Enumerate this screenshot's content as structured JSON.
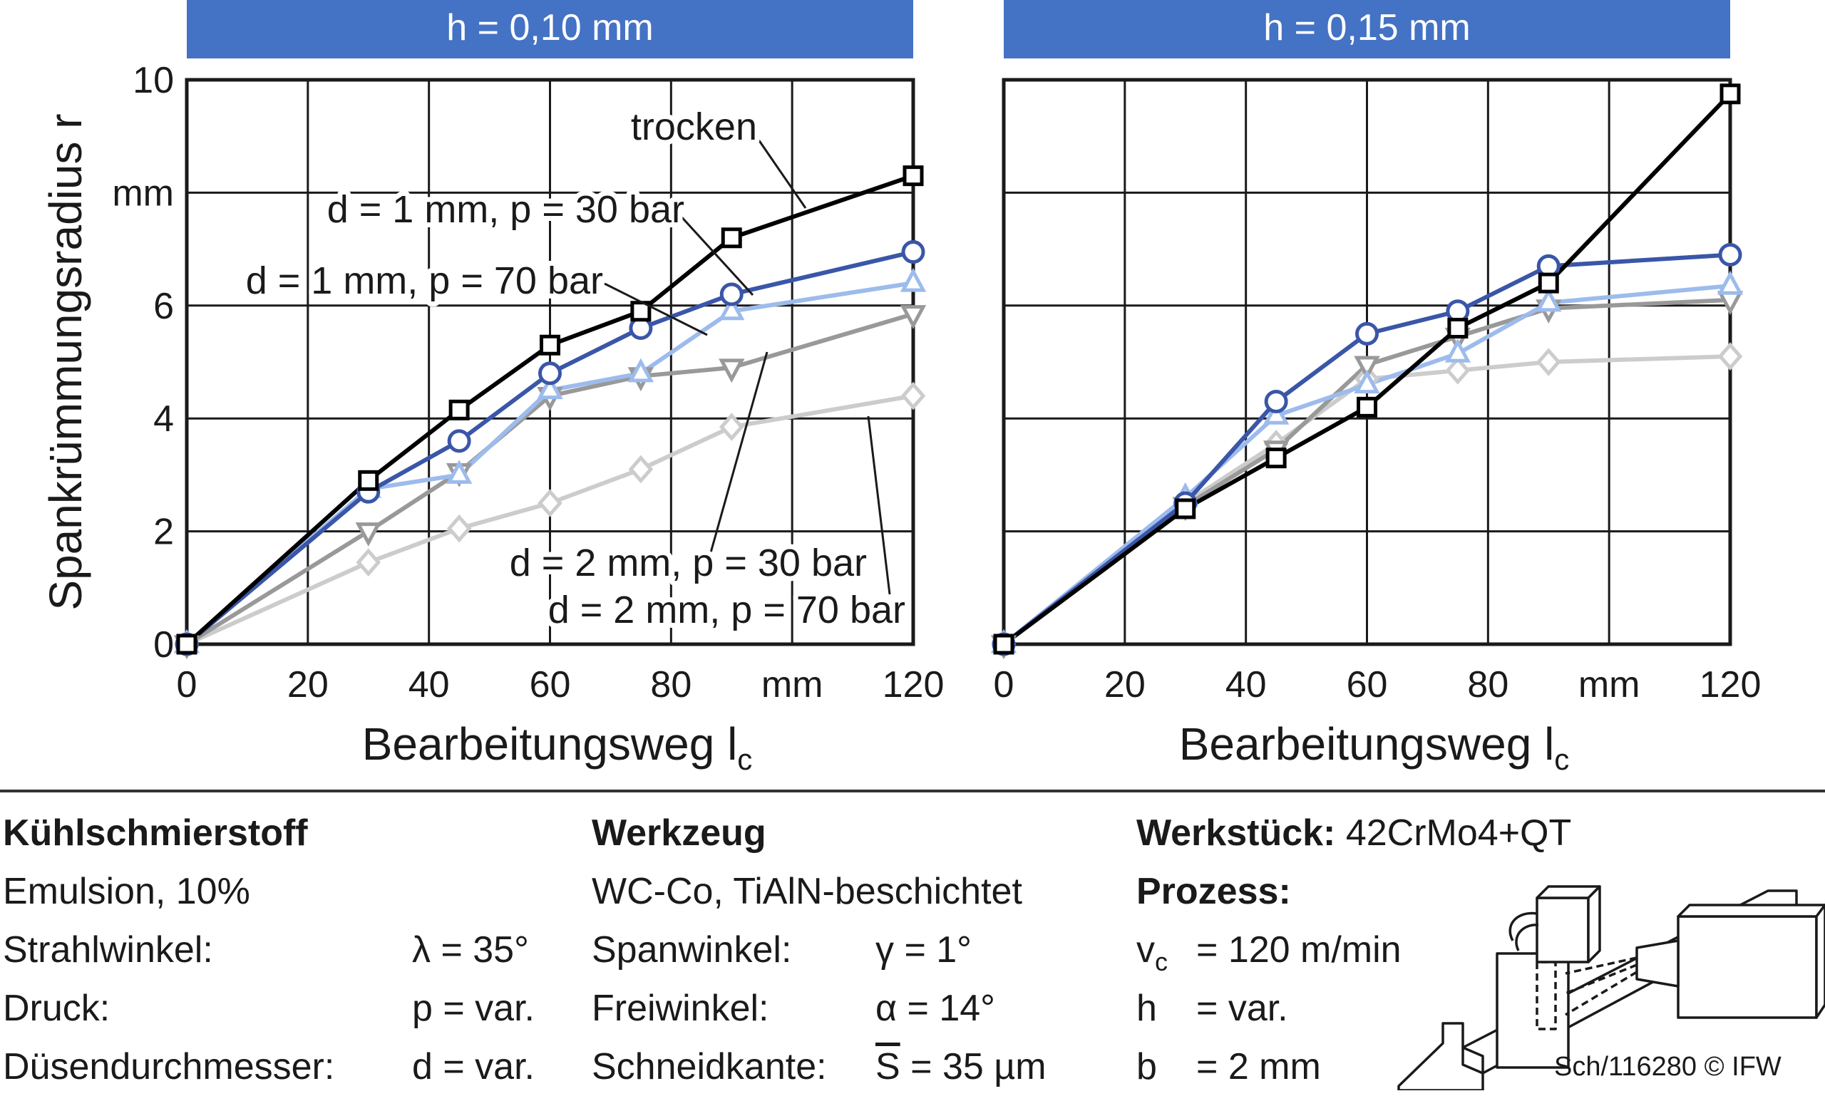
{
  "chart_data": [
    {
      "type": "line",
      "title": "h = 0,10 mm",
      "xlabel": "Bearbeitungsweg l",
      "xlabel_sub": "c",
      "ylabel": "Spankrümmungsradius r",
      "xlim": [
        0,
        120
      ],
      "ylim": [
        0,
        10
      ],
      "x_ticks": [
        "0",
        "20",
        "40",
        "60",
        "80",
        "mm",
        "120"
      ],
      "y_ticks": [
        "0",
        "2",
        "4",
        "6",
        "mm",
        "10"
      ],
      "grid": true,
      "x": [
        0,
        30,
        45,
        60,
        75,
        90,
        120
      ],
      "series": [
        {
          "name": "trocken",
          "values": [
            0,
            2.9,
            4.15,
            5.3,
            5.9,
            7.2,
            8.3
          ]
        },
        {
          "name": "d = 1 mm, p = 30 bar",
          "values": [
            0,
            2.7,
            3.6,
            4.8,
            5.6,
            6.2,
            6.95
          ]
        },
        {
          "name": "d = 1 mm, p = 70 bar",
          "values": [
            0,
            2.75,
            3.0,
            4.5,
            4.8,
            5.9,
            6.4
          ]
        },
        {
          "name": "d = 2 mm, p = 30 bar",
          "values": [
            0,
            2.0,
            3.05,
            4.4,
            4.75,
            4.9,
            5.85
          ]
        },
        {
          "name": "d = 2 mm, p = 70 bar",
          "values": [
            0,
            1.45,
            2.05,
            2.5,
            3.1,
            3.85,
            4.4
          ]
        }
      ]
    },
    {
      "type": "line",
      "title": "h = 0,15 mm",
      "xlabel": "Bearbeitungsweg l",
      "xlabel_sub": "c",
      "xlim": [
        0,
        120
      ],
      "ylim": [
        0,
        10
      ],
      "x_ticks": [
        "0",
        "20",
        "40",
        "60",
        "80",
        "mm",
        "120"
      ],
      "grid": true,
      "x": [
        0,
        30,
        45,
        60,
        75,
        90,
        120
      ],
      "series": [
        {
          "name": "trocken",
          "values": [
            0,
            2.4,
            3.3,
            4.2,
            5.6,
            6.4,
            9.75
          ]
        },
        {
          "name": "d = 1 mm, p = 30 bar",
          "values": [
            0,
            2.5,
            4.3,
            5.5,
            5.9,
            6.7,
            6.9
          ]
        },
        {
          "name": "d = 1 mm, p = 70 bar",
          "values": [
            0,
            2.6,
            4.05,
            4.6,
            5.15,
            6.05,
            6.35
          ]
        },
        {
          "name": "d = 2 mm, p = 30 bar",
          "values": [
            0,
            2.45,
            3.45,
            4.95,
            5.45,
            5.95,
            6.1
          ]
        },
        {
          "name": "d = 2 mm, p = 70 bar",
          "values": [
            0,
            2.5,
            3.55,
            4.7,
            4.85,
            5.0,
            5.1
          ]
        }
      ]
    }
  ],
  "series_styles": [
    {
      "color": "#000000",
      "marker": "square"
    },
    {
      "color": "#3a56a8",
      "marker": "circle"
    },
    {
      "color": "#9dbbec",
      "marker": "triangle-up"
    },
    {
      "color": "#999999",
      "marker": "triangle-down"
    },
    {
      "color": "#cccccc",
      "marker": "diamond"
    }
  ],
  "header_color": "#4472c4",
  "annotations": {
    "trocken": "trocken",
    "d1p30": "d = 1 mm, p = 30 bar",
    "d1p70": "d = 1 mm, p = 70 bar",
    "d2p30": "d = 2 mm, p = 30 bar",
    "d2p70": "d = 2 mm, p = 70 bar"
  },
  "footer": {
    "coolant": {
      "title": "Kühlschmierstoff",
      "line1": "Emulsion, 10%",
      "rows": [
        {
          "label": "Strahlwinkel:",
          "value": "λ = 35°"
        },
        {
          "label": "Druck:",
          "value": "p = var."
        },
        {
          "label": "Düsendurchmesser:",
          "value": "d = var."
        }
      ]
    },
    "tool": {
      "title": "Werkzeug",
      "line1": "WC-Co, TiAlN-beschichtet",
      "rows": [
        {
          "label": "Spanwinkel:",
          "value": "γ = 1°"
        },
        {
          "label": "Freiwinkel:",
          "value": "α = 14°"
        },
        {
          "label": "Schneidkante:",
          "value_sym": "S",
          "value_rest": " = 35 µm"
        }
      ]
    },
    "workpiece": {
      "title": "Werkstück:",
      "material": "42CrMo4+QT",
      "process_title": "Prozess:",
      "vc_sym": "v",
      "vc_sub": "c",
      "vc_value": "= 120 m/min",
      "h_sym": "h",
      "h_value": "= var.",
      "b_sym": "b",
      "b_value": "= 2 mm"
    },
    "credit": "Sch/116280 © IFW"
  }
}
